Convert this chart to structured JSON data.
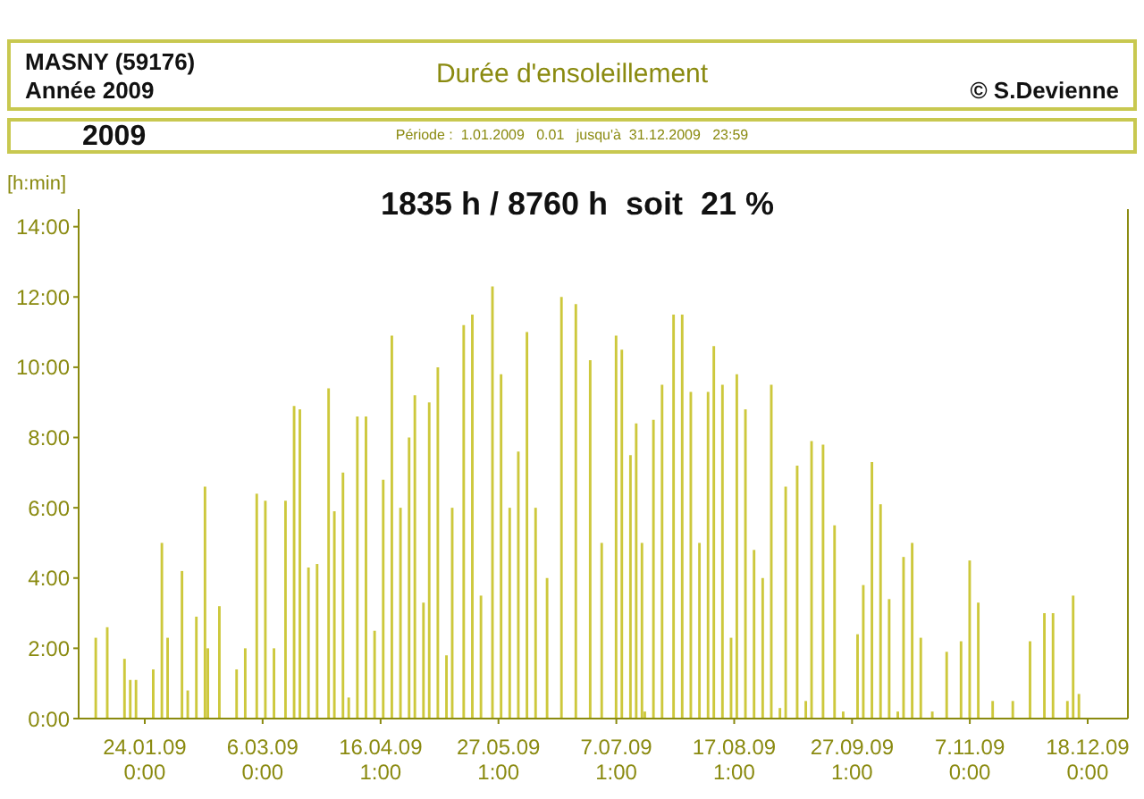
{
  "chart_data": {
    "type": "bar",
    "title": "Durée d'ensoleillement",
    "subtitle": "1835 h / 8760 h  soit  21 %",
    "ylabel": "[h:min]",
    "annotations": [
      "MASNY (59176)",
      "Année 2009",
      "© S.Devienne",
      "2009",
      "Période :  1.01.2009   0.01   jusqu'à  31.12.2009   23:59"
    ],
    "x": [
      "2009-01-07",
      "2009-01-11",
      "2009-01-17",
      "2009-01-19",
      "2009-01-21",
      "2009-01-27",
      "2009-01-30",
      "2009-02-01",
      "2009-02-06",
      "2009-02-08",
      "2009-02-11",
      "2009-02-14",
      "2009-02-15",
      "2009-02-19",
      "2009-02-25",
      "2009-02-28",
      "2009-03-04",
      "2009-03-07",
      "2009-03-10",
      "2009-03-14",
      "2009-03-17",
      "2009-03-19",
      "2009-03-22",
      "2009-03-25",
      "2009-03-29",
      "2009-03-31",
      "2009-04-03",
      "2009-04-05",
      "2009-04-08",
      "2009-04-11",
      "2009-04-14",
      "2009-04-17",
      "2009-04-20",
      "2009-04-23",
      "2009-04-26",
      "2009-04-28",
      "2009-05-01",
      "2009-05-03",
      "2009-05-06",
      "2009-05-09",
      "2009-05-11",
      "2009-05-15",
      "2009-05-18",
      "2009-05-21",
      "2009-05-25",
      "2009-05-28",
      "2009-05-31",
      "2009-06-03",
      "2009-06-06",
      "2009-06-09",
      "2009-06-13",
      "2009-06-18",
      "2009-06-23",
      "2009-06-28",
      "2009-07-02",
      "2009-07-07",
      "2009-07-09",
      "2009-07-12",
      "2009-07-14",
      "2009-07-16",
      "2009-07-17",
      "2009-07-20",
      "2009-07-23",
      "2009-07-27",
      "2009-07-30",
      "2009-08-02",
      "2009-08-05",
      "2009-08-08",
      "2009-08-10",
      "2009-08-13",
      "2009-08-16",
      "2009-08-18",
      "2009-08-21",
      "2009-08-24",
      "2009-08-27",
      "2009-08-30",
      "2009-09-02",
      "2009-09-04",
      "2009-09-08",
      "2009-09-11",
      "2009-09-13",
      "2009-09-17",
      "2009-09-21",
      "2009-09-24",
      "2009-09-29",
      "2009-10-01",
      "2009-10-04",
      "2009-10-07",
      "2009-10-10",
      "2009-10-13",
      "2009-10-15",
      "2009-10-18",
      "2009-10-21",
      "2009-10-25",
      "2009-10-30",
      "2009-11-04",
      "2009-11-07",
      "2009-11-10",
      "2009-11-15",
      "2009-11-22",
      "2009-11-28",
      "2009-12-03",
      "2009-12-06",
      "2009-12-11",
      "2009-12-13",
      "2009-12-15"
    ],
    "values": [
      2.3,
      2.6,
      1.7,
      1.1,
      1.1,
      1.4,
      5.0,
      2.3,
      4.2,
      0.8,
      2.9,
      6.6,
      2.0,
      3.2,
      1.4,
      2.0,
      6.4,
      6.2,
      2.0,
      6.2,
      8.9,
      8.8,
      4.3,
      4.4,
      9.4,
      5.9,
      7.0,
      0.6,
      8.6,
      8.6,
      2.5,
      6.8,
      10.9,
      6.0,
      8.0,
      9.2,
      3.3,
      9.0,
      10.0,
      1.8,
      6.0,
      11.2,
      11.5,
      3.5,
      12.3,
      9.8,
      6.0,
      7.6,
      11.0,
      6.0,
      4.0,
      12.0,
      11.8,
      10.2,
      5.0,
      10.9,
      10.5,
      7.5,
      8.4,
      5.0,
      0.2,
      8.5,
      9.5,
      11.5,
      11.5,
      9.3,
      5.0,
      9.3,
      10.6,
      9.5,
      2.3,
      9.8,
      8.8,
      4.8,
      4.0,
      9.5,
      0.3,
      6.6,
      7.2,
      0.5,
      7.9,
      7.8,
      5.5,
      0.2,
      2.4,
      3.8,
      7.3,
      6.1,
      3.4,
      0.2,
      4.6,
      5.0,
      2.3,
      0.2,
      1.9,
      2.2,
      4.5,
      3.3,
      0.5,
      0.5,
      2.2,
      3.0,
      3.0,
      0.5,
      3.5,
      0.7
    ],
    "color": "#cdc83c",
    "xlim": [
      "2009-01-01T00:01",
      "2009-12-31T23:59"
    ],
    "xticks": [
      {
        "value": "2009-01-24T00:00",
        "label": "24.01.09\n0:00"
      },
      {
        "value": "2009-03-06T00:00",
        "label": "6.03.09\n0:00"
      },
      {
        "value": "2009-04-16T01:00",
        "label": "16.04.09\n1:00"
      },
      {
        "value": "2009-05-27T01:00",
        "label": "27.05.09\n1:00"
      },
      {
        "value": "2009-07-07T01:00",
        "label": "7.07.09\n1:00"
      },
      {
        "value": "2009-08-17T01:00",
        "label": "17.08.09\n1:00"
      },
      {
        "value": "2009-09-27T01:00",
        "label": "27.09.09\n1:00"
      },
      {
        "value": "2009-11-07T00:00",
        "label": "7.11.09\n0:00"
      },
      {
        "value": "2009-12-18T00:00",
        "label": "18.12.09\n0:00"
      }
    ],
    "ylim": [
      0,
      14.5
    ],
    "yticks": [
      {
        "value": 0,
        "label": "0:00"
      },
      {
        "value": 2,
        "label": "2:00"
      },
      {
        "value": 4,
        "label": "4:00"
      },
      {
        "value": 6,
        "label": "6:00"
      },
      {
        "value": 8,
        "label": "8:00"
      },
      {
        "value": 10,
        "label": "10:00"
      },
      {
        "value": 12,
        "label": "12:00"
      },
      {
        "value": 14,
        "label": "14:00"
      }
    ]
  }
}
